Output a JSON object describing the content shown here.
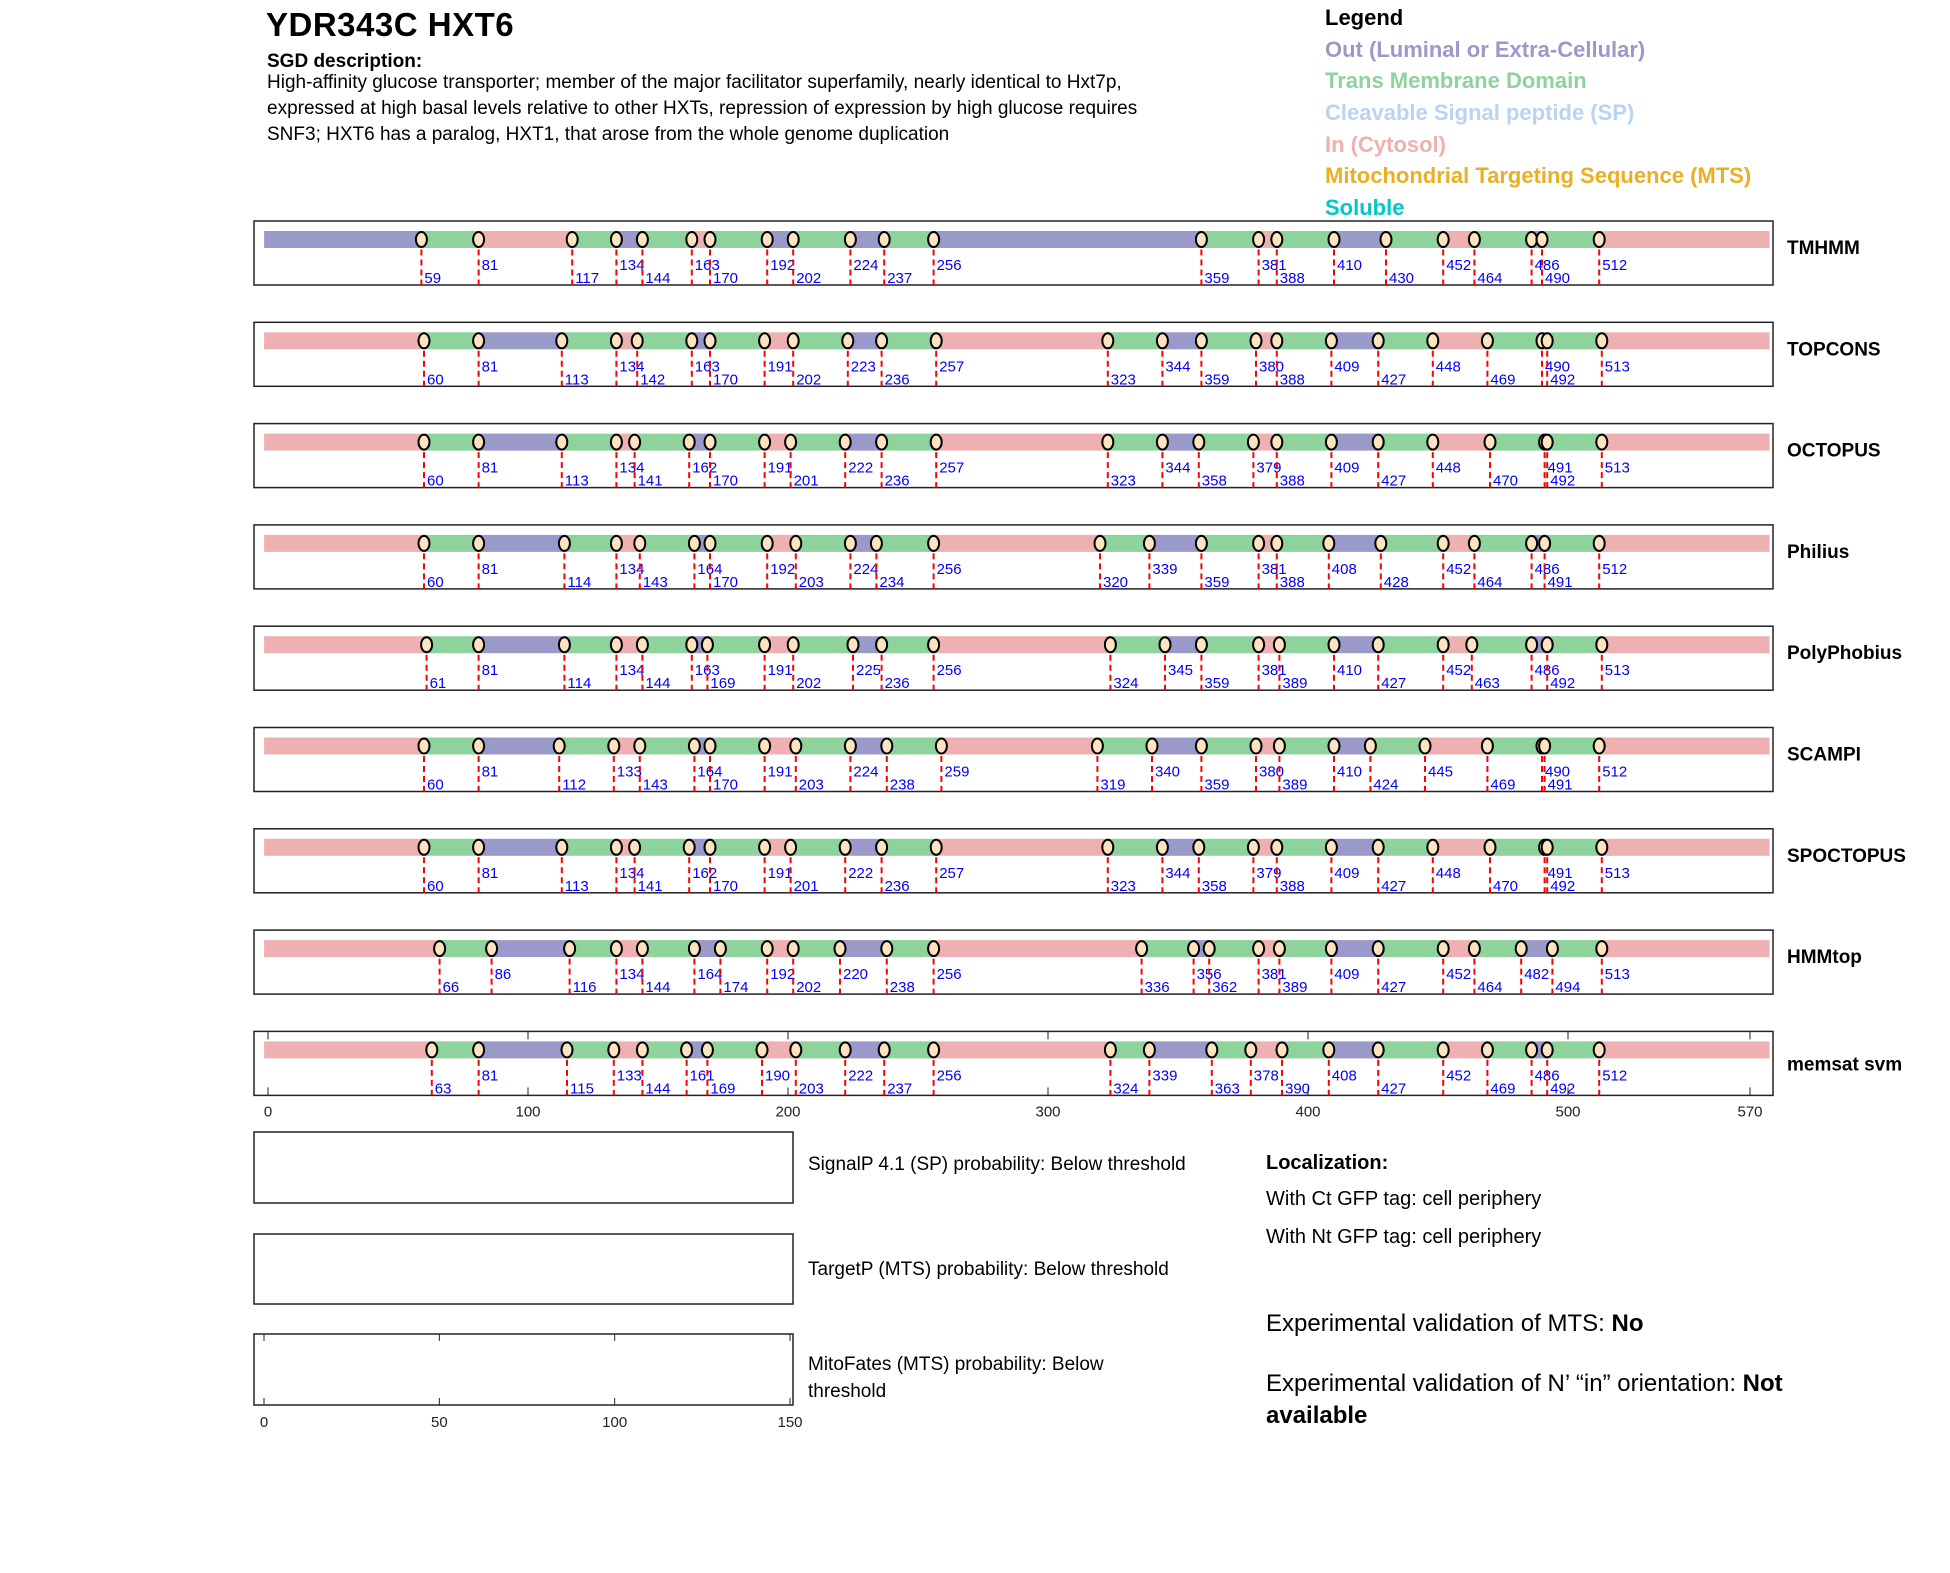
{
  "header": {
    "title": "YDR343C  HXT6",
    "sgd_heading": "SGD description:",
    "description_lines": [
      "High-affinity glucose transporter; member of the major facilitator superfamily, nearly identical to Hxt7p,",
      "expressed at high basal levels relative to other HXTs, repression of expression by high glucose requires",
      "SNF3; HXT6 has a paralog, HXT1, that arose from the whole genome duplication"
    ]
  },
  "legend": {
    "title": "Legend",
    "items": [
      {
        "label": "Out (Luminal or Extra-Cellular)",
        "color": "#9a9aca"
      },
      {
        "label": "Trans Membrane Domain",
        "color": "#8ed29c"
      },
      {
        "label": "Cleavable Signal peptide (SP)",
        "color": "#b9d3f3"
      },
      {
        "label": "In (Cytosol)",
        "color": "#eeb0b0"
      },
      {
        "label": "Mitochondrial Targeting Sequence (MTS)",
        "color": "#eeae22"
      },
      {
        "label": "Soluble",
        "color": "#00c8c8"
      }
    ]
  },
  "chart_data": {
    "type": "topology-tracks",
    "xlim": [
      0,
      570
    ],
    "x_ticks": [
      0,
      100,
      200,
      300,
      400,
      500,
      570
    ],
    "segment_colors": {
      "out": "#9a9aca",
      "tm": "#8ed29c",
      "in": "#eeb0b0"
    },
    "methods": [
      {
        "name": "TMHMM",
        "boundaries": [
          59,
          81,
          117,
          134,
          144,
          163,
          170,
          192,
          202,
          224,
          237,
          256,
          359,
          381,
          388,
          410,
          430,
          452,
          464,
          486,
          490,
          512
        ],
        "loops": [
          "out",
          "in",
          "out",
          "in",
          "out",
          "out",
          "out",
          "in",
          "out",
          "in",
          "out",
          "in"
        ]
      },
      {
        "name": "TOPCONS",
        "boundaries": [
          60,
          81,
          113,
          134,
          142,
          163,
          170,
          191,
          202,
          223,
          236,
          257,
          323,
          344,
          359,
          380,
          388,
          409,
          427,
          448,
          469,
          490,
          492,
          513
        ],
        "loops": [
          "in",
          "out",
          "in",
          "out",
          "in",
          "out",
          "in",
          "out",
          "in",
          "out",
          "in",
          "out",
          "in"
        ]
      },
      {
        "name": "OCTOPUS",
        "boundaries": [
          60,
          81,
          113,
          134,
          141,
          162,
          170,
          191,
          201,
          222,
          236,
          257,
          323,
          344,
          358,
          379,
          388,
          409,
          427,
          448,
          470,
          491,
          492,
          513
        ],
        "loops": [
          "in",
          "out",
          "in",
          "out",
          "in",
          "out",
          "in",
          "out",
          "in",
          "out",
          "in",
          "out",
          "in"
        ]
      },
      {
        "name": "Philius",
        "boundaries": [
          60,
          81,
          114,
          134,
          143,
          164,
          170,
          192,
          203,
          224,
          234,
          256,
          320,
          339,
          359,
          381,
          388,
          408,
          428,
          452,
          464,
          486,
          491,
          512
        ],
        "loops": [
          "in",
          "out",
          "in",
          "out",
          "in",
          "out",
          "in",
          "out",
          "in",
          "out",
          "in",
          "out",
          "in"
        ]
      },
      {
        "name": "PolyPhobius",
        "boundaries": [
          61,
          81,
          114,
          134,
          144,
          163,
          169,
          191,
          202,
          225,
          236,
          256,
          324,
          345,
          359,
          381,
          389,
          410,
          427,
          452,
          463,
          486,
          492,
          513
        ],
        "loops": [
          "in",
          "out",
          "in",
          "out",
          "in",
          "out",
          "in",
          "out",
          "in",
          "out",
          "in",
          "out",
          "in"
        ]
      },
      {
        "name": "SCAMPI",
        "boundaries": [
          60,
          81,
          112,
          133,
          143,
          164,
          170,
          191,
          203,
          224,
          238,
          259,
          319,
          340,
          359,
          380,
          389,
          410,
          424,
          445,
          469,
          490,
          491,
          512
        ],
        "loops": [
          "in",
          "out",
          "in",
          "out",
          "in",
          "out",
          "in",
          "out",
          "in",
          "out",
          "in",
          "out",
          "in"
        ]
      },
      {
        "name": "SPOCTOPUS",
        "boundaries": [
          60,
          81,
          113,
          134,
          141,
          162,
          170,
          191,
          201,
          222,
          236,
          257,
          323,
          344,
          358,
          379,
          388,
          409,
          427,
          448,
          470,
          491,
          492,
          513
        ],
        "loops": [
          "in",
          "out",
          "in",
          "out",
          "in",
          "out",
          "in",
          "out",
          "in",
          "out",
          "in",
          "out",
          "in"
        ]
      },
      {
        "name": "HMMtop",
        "boundaries": [
          66,
          86,
          116,
          134,
          144,
          164,
          174,
          192,
          202,
          220,
          238,
          256,
          336,
          356,
          362,
          381,
          389,
          409,
          427,
          452,
          464,
          482,
          494,
          513
        ],
        "loops": [
          "in",
          "out",
          "in",
          "out",
          "in",
          "out",
          "in",
          "out",
          "in",
          "out",
          "in",
          "out",
          "in"
        ]
      },
      {
        "name": "memsat svm",
        "boundaries": [
          63,
          81,
          115,
          133,
          144,
          161,
          169,
          190,
          203,
          222,
          237,
          256,
          324,
          339,
          363,
          378,
          390,
          408,
          427,
          452,
          469,
          486,
          492,
          512
        ],
        "loops": [
          "in",
          "out",
          "in",
          "out",
          "in",
          "out",
          "in",
          "out",
          "in",
          "out",
          "in",
          "out",
          "in"
        ]
      }
    ],
    "probability_plots": {
      "xlim": [
        0,
        150
      ],
      "x_ticks": [
        0,
        50,
        100,
        150
      ],
      "labels": [
        "SignalP 4.1 (SP) probability: Below threshold",
        "TargetP (MTS) probability: Below threshold",
        "MitoFates (MTS) probability: Below",
        "threshold"
      ]
    }
  },
  "localization": {
    "heading": "Localization:",
    "ct": "With Ct GFP tag: cell periphery",
    "nt": "With Nt GFP tag: cell periphery",
    "mts_label": "Experimental validation of MTS: ",
    "mts_value": "No",
    "orient_label": "Experimental validation of N’ “in” orientation: ",
    "orient_value_1": "Not",
    "orient_value_2": "available"
  }
}
